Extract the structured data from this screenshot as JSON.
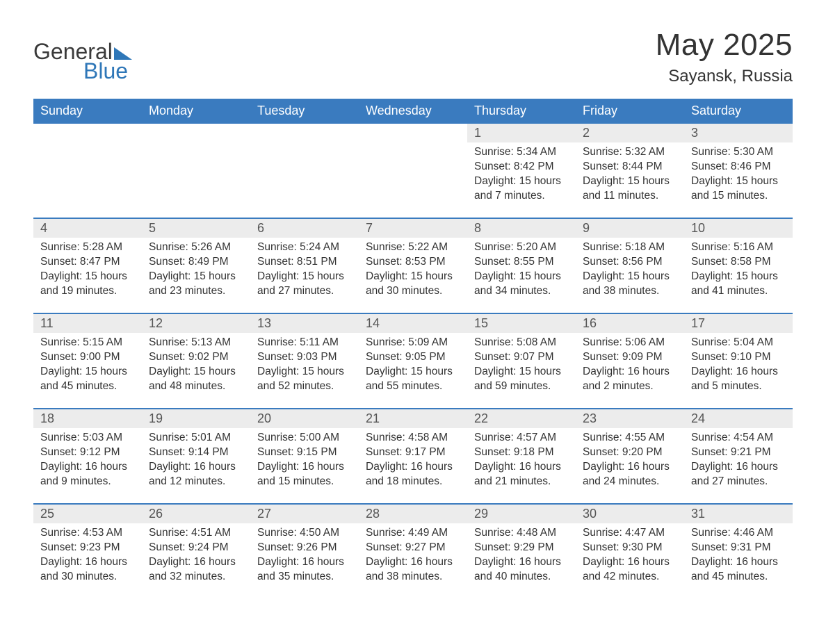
{
  "logo": {
    "word1": "General",
    "word2": "Blue"
  },
  "title": {
    "month": "May 2025",
    "location": "Sayansk, Russia"
  },
  "colors": {
    "header_bg": "#3a7bbf",
    "header_text": "#ffffff",
    "daynum_bg": "#ececec",
    "text": "#333333",
    "rule": "#3a7bbf",
    "logo_accent": "#2f77b8"
  },
  "columns": [
    "Sunday",
    "Monday",
    "Tuesday",
    "Wednesday",
    "Thursday",
    "Friday",
    "Saturday"
  ],
  "weeks": [
    {
      "days": [
        null,
        null,
        null,
        null,
        {
          "n": "1",
          "sunrise": "5:34 AM",
          "sunset": "8:42 PM",
          "daylight": "15 hours and 7 minutes."
        },
        {
          "n": "2",
          "sunrise": "5:32 AM",
          "sunset": "8:44 PM",
          "daylight": "15 hours and 11 minutes."
        },
        {
          "n": "3",
          "sunrise": "5:30 AM",
          "sunset": "8:46 PM",
          "daylight": "15 hours and 15 minutes."
        }
      ]
    },
    {
      "days": [
        {
          "n": "4",
          "sunrise": "5:28 AM",
          "sunset": "8:47 PM",
          "daylight": "15 hours and 19 minutes."
        },
        {
          "n": "5",
          "sunrise": "5:26 AM",
          "sunset": "8:49 PM",
          "daylight": "15 hours and 23 minutes."
        },
        {
          "n": "6",
          "sunrise": "5:24 AM",
          "sunset": "8:51 PM",
          "daylight": "15 hours and 27 minutes."
        },
        {
          "n": "7",
          "sunrise": "5:22 AM",
          "sunset": "8:53 PM",
          "daylight": "15 hours and 30 minutes."
        },
        {
          "n": "8",
          "sunrise": "5:20 AM",
          "sunset": "8:55 PM",
          "daylight": "15 hours and 34 minutes."
        },
        {
          "n": "9",
          "sunrise": "5:18 AM",
          "sunset": "8:56 PM",
          "daylight": "15 hours and 38 minutes."
        },
        {
          "n": "10",
          "sunrise": "5:16 AM",
          "sunset": "8:58 PM",
          "daylight": "15 hours and 41 minutes."
        }
      ]
    },
    {
      "days": [
        {
          "n": "11",
          "sunrise": "5:15 AM",
          "sunset": "9:00 PM",
          "daylight": "15 hours and 45 minutes."
        },
        {
          "n": "12",
          "sunrise": "5:13 AM",
          "sunset": "9:02 PM",
          "daylight": "15 hours and 48 minutes."
        },
        {
          "n": "13",
          "sunrise": "5:11 AM",
          "sunset": "9:03 PM",
          "daylight": "15 hours and 52 minutes."
        },
        {
          "n": "14",
          "sunrise": "5:09 AM",
          "sunset": "9:05 PM",
          "daylight": "15 hours and 55 minutes."
        },
        {
          "n": "15",
          "sunrise": "5:08 AM",
          "sunset": "9:07 PM",
          "daylight": "15 hours and 59 minutes."
        },
        {
          "n": "16",
          "sunrise": "5:06 AM",
          "sunset": "9:09 PM",
          "daylight": "16 hours and 2 minutes."
        },
        {
          "n": "17",
          "sunrise": "5:04 AM",
          "sunset": "9:10 PM",
          "daylight": "16 hours and 5 minutes."
        }
      ]
    },
    {
      "days": [
        {
          "n": "18",
          "sunrise": "5:03 AM",
          "sunset": "9:12 PM",
          "daylight": "16 hours and 9 minutes."
        },
        {
          "n": "19",
          "sunrise": "5:01 AM",
          "sunset": "9:14 PM",
          "daylight": "16 hours and 12 minutes."
        },
        {
          "n": "20",
          "sunrise": "5:00 AM",
          "sunset": "9:15 PM",
          "daylight": "16 hours and 15 minutes."
        },
        {
          "n": "21",
          "sunrise": "4:58 AM",
          "sunset": "9:17 PM",
          "daylight": "16 hours and 18 minutes."
        },
        {
          "n": "22",
          "sunrise": "4:57 AM",
          "sunset": "9:18 PM",
          "daylight": "16 hours and 21 minutes."
        },
        {
          "n": "23",
          "sunrise": "4:55 AM",
          "sunset": "9:20 PM",
          "daylight": "16 hours and 24 minutes."
        },
        {
          "n": "24",
          "sunrise": "4:54 AM",
          "sunset": "9:21 PM",
          "daylight": "16 hours and 27 minutes."
        }
      ]
    },
    {
      "days": [
        {
          "n": "25",
          "sunrise": "4:53 AM",
          "sunset": "9:23 PM",
          "daylight": "16 hours and 30 minutes."
        },
        {
          "n": "26",
          "sunrise": "4:51 AM",
          "sunset": "9:24 PM",
          "daylight": "16 hours and 32 minutes."
        },
        {
          "n": "27",
          "sunrise": "4:50 AM",
          "sunset": "9:26 PM",
          "daylight": "16 hours and 35 minutes."
        },
        {
          "n": "28",
          "sunrise": "4:49 AM",
          "sunset": "9:27 PM",
          "daylight": "16 hours and 38 minutes."
        },
        {
          "n": "29",
          "sunrise": "4:48 AM",
          "sunset": "9:29 PM",
          "daylight": "16 hours and 40 minutes."
        },
        {
          "n": "30",
          "sunrise": "4:47 AM",
          "sunset": "9:30 PM",
          "daylight": "16 hours and 42 minutes."
        },
        {
          "n": "31",
          "sunrise": "4:46 AM",
          "sunset": "9:31 PM",
          "daylight": "16 hours and 45 minutes."
        }
      ]
    }
  ],
  "labels": {
    "sunrise": "Sunrise: ",
    "sunset": "Sunset: ",
    "daylight": "Daylight: "
  }
}
